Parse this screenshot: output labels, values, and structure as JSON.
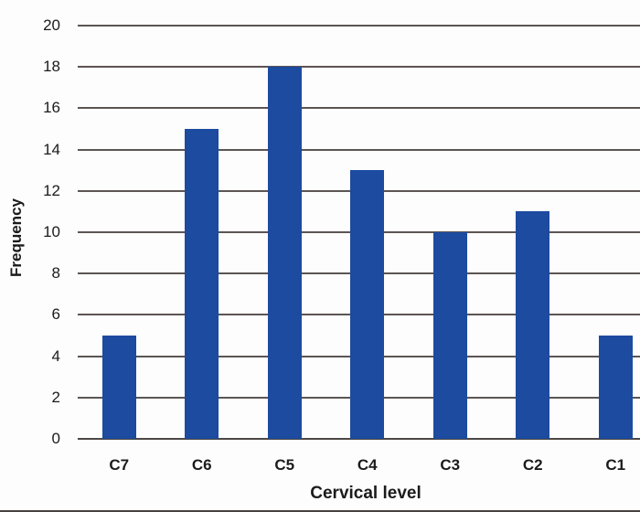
{
  "chart_data": {
    "type": "bar",
    "categories": [
      "C7",
      "C6",
      "C5",
      "C4",
      "C3",
      "C2",
      "C1"
    ],
    "values": [
      5,
      15,
      18,
      13,
      10,
      11,
      5
    ],
    "title": "",
    "xlabel": "Cervical level",
    "ylabel": "Frequency",
    "ylim": [
      0,
      20
    ],
    "ytick_step": 2,
    "yticks": [
      0,
      2,
      4,
      6,
      8,
      10,
      12,
      14,
      16,
      18,
      20
    ],
    "grid": true,
    "legend": "none",
    "colors": {
      "bar": "#1C4BA0",
      "gridline": "#5C5553",
      "axis_line": "#4D4845",
      "text": "#1B1B1B",
      "frame_bottom": "#454240",
      "background": "#FDFDFD"
    }
  }
}
